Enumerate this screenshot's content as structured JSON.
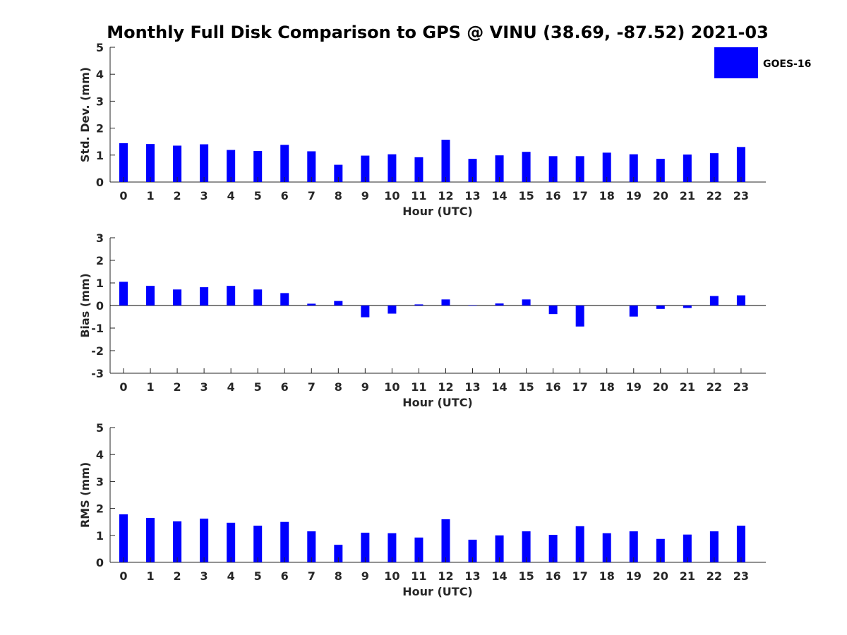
{
  "title": "Monthly Full Disk Comparison to GPS @ VINU (38.69, -87.52) 2021-03",
  "legend": {
    "label": "GOES-16",
    "placement": "top-right"
  },
  "colors": {
    "bar": "#0000ff",
    "axis": "#262626"
  },
  "chart_data": [
    {
      "type": "bar",
      "name": "std-dev",
      "ylabel": "Std. Dev. (mm)",
      "xlabel": "Hour (UTC)",
      "ylim": [
        0,
        5
      ],
      "yticks": [
        0,
        1,
        2,
        3,
        4,
        5
      ],
      "categories": [
        0,
        1,
        2,
        3,
        4,
        5,
        6,
        7,
        8,
        9,
        10,
        11,
        12,
        13,
        14,
        15,
        16,
        17,
        18,
        19,
        20,
        21,
        22,
        23
      ],
      "series": [
        {
          "name": "GOES-16",
          "values": [
            1.44,
            1.41,
            1.35,
            1.4,
            1.19,
            1.15,
            1.38,
            1.14,
            0.64,
            0.98,
            1.03,
            0.92,
            1.57,
            0.86,
            0.99,
            1.12,
            0.96,
            0.96,
            1.09,
            1.03,
            0.86,
            1.02,
            1.07,
            1.3
          ]
        }
      ],
      "grid": false
    },
    {
      "type": "bar",
      "name": "bias",
      "ylabel": "Bias (mm)",
      "xlabel": "Hour (UTC)",
      "ylim": [
        -3,
        3
      ],
      "yticks": [
        -3,
        -2,
        -1,
        0,
        1,
        2,
        3
      ],
      "categories": [
        0,
        1,
        2,
        3,
        4,
        5,
        6,
        7,
        8,
        9,
        10,
        11,
        12,
        13,
        14,
        15,
        16,
        17,
        18,
        19,
        20,
        21,
        22,
        23
      ],
      "series": [
        {
          "name": "GOES-16",
          "values": [
            1.05,
            0.87,
            0.71,
            0.81,
            0.87,
            0.71,
            0.55,
            0.08,
            0.2,
            -0.52,
            -0.36,
            0.05,
            0.27,
            -0.02,
            0.09,
            0.27,
            -0.38,
            -0.93,
            0.0,
            -0.49,
            -0.15,
            -0.11,
            0.42,
            0.45
          ]
        }
      ],
      "zero_line": true,
      "grid": false
    },
    {
      "type": "bar",
      "name": "rms",
      "ylabel": "RMS (mm)",
      "xlabel": "Hour (UTC)",
      "ylim": [
        0,
        5
      ],
      "yticks": [
        0,
        1,
        2,
        3,
        4,
        5
      ],
      "categories": [
        0,
        1,
        2,
        3,
        4,
        5,
        6,
        7,
        8,
        9,
        10,
        11,
        12,
        13,
        14,
        15,
        16,
        17,
        18,
        19,
        20,
        21,
        22,
        23
      ],
      "series": [
        {
          "name": "GOES-16",
          "values": [
            1.78,
            1.65,
            1.52,
            1.62,
            1.47,
            1.36,
            1.5,
            1.15,
            0.65,
            1.1,
            1.08,
            0.92,
            1.6,
            0.84,
            1.0,
            1.15,
            1.02,
            1.34,
            1.08,
            1.15,
            0.87,
            1.03,
            1.15,
            1.36
          ]
        }
      ],
      "grid": false
    }
  ]
}
